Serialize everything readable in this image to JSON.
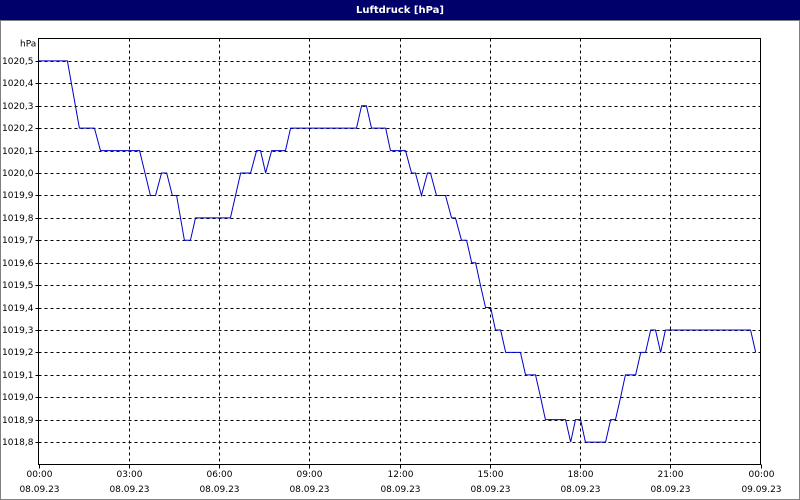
{
  "chart_data": {
    "type": "line",
    "title": "Luftdruck [hPa]",
    "y_unit": "hPa",
    "color": "#0000c8",
    "grid": true,
    "xlim": [
      0,
      24
    ],
    "ylim": [
      1018.7,
      1020.6
    ],
    "xticks": [
      {
        "value": 0,
        "label": "00:00"
      },
      {
        "value": 3,
        "label": "03:00"
      },
      {
        "value": 6,
        "label": "06:00"
      },
      {
        "value": 9,
        "label": "09:00"
      },
      {
        "value": 12,
        "label": "12:00"
      },
      {
        "value": 15,
        "label": "15:00"
      },
      {
        "value": 18,
        "label": "18:00"
      },
      {
        "value": 21,
        "label": "21:00"
      },
      {
        "value": 24,
        "label": "00:00"
      }
    ],
    "xtick_dates": [
      "08.09.23",
      "08.09.23",
      "08.09.23",
      "08.09.23",
      "08.09.23",
      "08.09.23",
      "08.09.23",
      "08.09.23",
      "09.09.23"
    ],
    "yticks": [
      {
        "value": 1018.8,
        "label": "1018,8"
      },
      {
        "value": 1018.9,
        "label": "1018,9"
      },
      {
        "value": 1019.0,
        "label": "1019,0"
      },
      {
        "value": 1019.1,
        "label": "1019,1"
      },
      {
        "value": 1019.2,
        "label": "1019,2"
      },
      {
        "value": 1019.3,
        "label": "1019,3"
      },
      {
        "value": 1019.4,
        "label": "1019,4"
      },
      {
        "value": 1019.5,
        "label": "1019,5"
      },
      {
        "value": 1019.6,
        "label": "1019,6"
      },
      {
        "value": 1019.7,
        "label": "1019,7"
      },
      {
        "value": 1019.8,
        "label": "1019,8"
      },
      {
        "value": 1019.9,
        "label": "1019,9"
      },
      {
        "value": 1020.0,
        "label": "1020,0"
      },
      {
        "value": 1020.1,
        "label": "1020,1"
      },
      {
        "value": 1020.2,
        "label": "1020,2"
      },
      {
        "value": 1020.3,
        "label": "1020,3"
      },
      {
        "value": 1020.4,
        "label": "1020,4"
      },
      {
        "value": 1020.5,
        "label": "1020,5"
      }
    ],
    "x": [
      0,
      0.96,
      1.36,
      1.86,
      2.06,
      3.36,
      3.72,
      3.89,
      4.09,
      4.26,
      4.45,
      4.59,
      4.85,
      5.05,
      5.22,
      6.38,
      6.72,
      7.05,
      7.25,
      7.38,
      7.55,
      7.75,
      8.21,
      8.38,
      10.57,
      10.74,
      10.9,
      11.07,
      11.54,
      11.7,
      12.2,
      12.4,
      12.53,
      12.73,
      12.93,
      13.03,
      13.23,
      13.53,
      13.73,
      13.86,
      14.06,
      14.23,
      14.4,
      14.53,
      14.69,
      14.86,
      15.03,
      15.19,
      15.36,
      15.53,
      16.02,
      16.19,
      16.52,
      16.69,
      16.85,
      17.52,
      17.69,
      17.85,
      18.02,
      18.18,
      18.85,
      19.02,
      19.18,
      19.35,
      19.51,
      19.85,
      20.02,
      20.18,
      20.35,
      20.51,
      20.68,
      20.84,
      23.67,
      23.84
    ],
    "values": [
      1020.5,
      1020.5,
      1020.2,
      1020.2,
      1020.1,
      1020.1,
      1019.9,
      1019.9,
      1020.0,
      1020.0,
      1019.9,
      1019.9,
      1019.7,
      1019.7,
      1019.8,
      1019.8,
      1020.0,
      1020.0,
      1020.1,
      1020.1,
      1020.0,
      1020.1,
      1020.1,
      1020.2,
      1020.2,
      1020.3,
      1020.3,
      1020.2,
      1020.2,
      1020.1,
      1020.1,
      1020.0,
      1020.0,
      1019.9,
      1020.0,
      1020.0,
      1019.9,
      1019.9,
      1019.8,
      1019.8,
      1019.7,
      1019.7,
      1019.6,
      1019.6,
      1019.5,
      1019.4,
      1019.4,
      1019.3,
      1019.3,
      1019.2,
      1019.2,
      1019.1,
      1019.1,
      1019.0,
      1018.9,
      1018.9,
      1018.8,
      1018.9,
      1018.9,
      1018.8,
      1018.8,
      1018.9,
      1018.9,
      1019.0,
      1019.1,
      1019.1,
      1019.2,
      1019.2,
      1019.3,
      1019.3,
      1019.2,
      1019.3,
      1019.3,
      1019.2
    ]
  }
}
